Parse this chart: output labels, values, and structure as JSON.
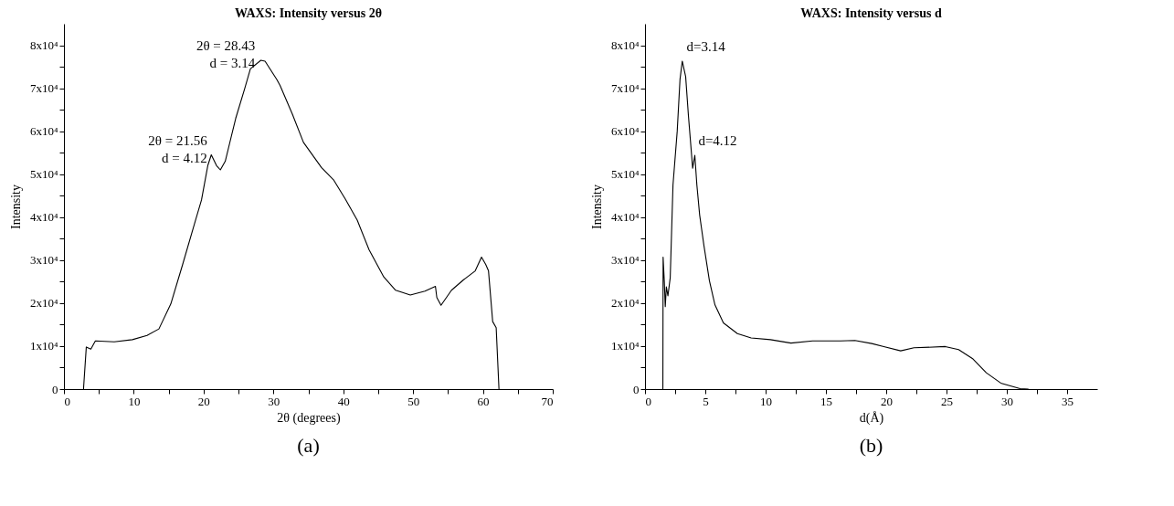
{
  "chart_data": [
    {
      "type": "line",
      "title": "WAXS: Intensity versus 2θ",
      "xlabel": "2θ (degrees)",
      "ylabel": "Intensity",
      "x": [
        2.8,
        3.2,
        3.85,
        4.5,
        7.2,
        9.8,
        11.9,
        13.6,
        15.3,
        17.0,
        18.7,
        19.7,
        20.6,
        21.1,
        21.85,
        22.4,
        23.1,
        24.6,
        25.9,
        26.7,
        28.2,
        28.8,
        30.5,
        30.96,
        32.7,
        34.3,
        36.9,
        38.6,
        40.3,
        42.0,
        43.7,
        45.8,
        47.5,
        49.6,
        51.7,
        53.2,
        53.4,
        54.0,
        55.5,
        57.2,
        58.9,
        59.8,
        60.4,
        60.8,
        61.4,
        61.9,
        62.3
      ],
      "series": [
        {
          "color": "#000000",
          "values": [
            0,
            9800,
            9300,
            11200,
            11000,
            11500,
            12500,
            14000,
            19800,
            29000,
            38500,
            44000,
            52000,
            54500,
            52000,
            51000,
            53000,
            63000,
            70000,
            74500,
            76500,
            76300,
            72000,
            70600,
            64000,
            57400,
            51500,
            48700,
            44200,
            39300,
            32400,
            26100,
            23000,
            21900,
            22800,
            23900,
            21300,
            19500,
            23000,
            25400,
            27500,
            30700,
            29000,
            27500,
            15700,
            14300,
            0
          ]
        }
      ],
      "xlim": [
        0,
        70
      ],
      "xticks": [
        0,
        {
          "value": 5,
          "label": null
        },
        10,
        {
          "value": 15,
          "label": null
        },
        20,
        {
          "value": 25,
          "label": null
        },
        30,
        {
          "value": 35,
          "label": null
        },
        40,
        {
          "value": 45,
          "label": null
        },
        50,
        {
          "value": 55,
          "label": null
        },
        60,
        {
          "value": 65,
          "label": null
        },
        70
      ],
      "ylim": [
        0,
        85000
      ],
      "yticks": [
        0,
        {
          "value": 5000,
          "label": null
        },
        {
          "value": 10000,
          "label": "1x10⁴"
        },
        {
          "value": 15000,
          "label": null
        },
        {
          "value": 20000,
          "label": "2x10⁴"
        },
        {
          "value": 25000,
          "label": null
        },
        {
          "value": 30000,
          "label": "3x10⁴"
        },
        {
          "value": 35000,
          "label": null
        },
        {
          "value": 40000,
          "label": "4x10⁴"
        },
        {
          "value": 45000,
          "label": null
        },
        {
          "value": 50000,
          "label": "5x10⁴"
        },
        {
          "value": 55000,
          "label": null
        },
        {
          "value": 60000,
          "label": "6x10⁴"
        },
        {
          "value": 65000,
          "label": null
        },
        {
          "value": 70000,
          "label": "7x10⁴"
        },
        {
          "value": 75000,
          "label": null
        },
        {
          "value": 80000,
          "label": "8x10⁴"
        }
      ],
      "annotations": [
        {
          "text": "2θ = 21.56\nd = 4.12",
          "x": 21.56,
          "y": 54500
        },
        {
          "text": "2θ = 28.43\nd = 3.14",
          "x": 28.43,
          "y": 76500
        },
        "(a)"
      ]
    },
    {
      "type": "line",
      "title": "WAXS: Intensity versus d",
      "xlabel": "d(Å)",
      "ylabel": "Intensity",
      "x": [
        1.48,
        1.5,
        1.6,
        1.68,
        1.77,
        1.9,
        2.09,
        2.32,
        2.67,
        2.9,
        3.09,
        3.37,
        3.6,
        3.95,
        4.13,
        4.3,
        4.53,
        4.88,
        5.34,
        5.8,
        6.5,
        7.66,
        8.8,
        10.4,
        12.1,
        13.9,
        16.2,
        17.4,
        18.8,
        19.8,
        21.2,
        22.3,
        24.9,
        26.0,
        27.2,
        28.3,
        29.5,
        31.1,
        31.8
      ],
      "series": [
        {
          "color": "#000000",
          "values": [
            0,
            30700,
            25000,
            19200,
            23800,
            21700,
            25900,
            47500,
            60000,
            72000,
            76300,
            72700,
            63600,
            51400,
            54400,
            47500,
            40500,
            33500,
            25200,
            19600,
            15400,
            12900,
            11900,
            11500,
            10700,
            11200,
            11200,
            11300,
            10600,
            9900,
            8900,
            9600,
            9900,
            9200,
            7000,
            3800,
            1400,
            100,
            0
          ]
        }
      ],
      "xlim": [
        0,
        37.5
      ],
      "xticks": [
        0,
        {
          "value": 2.5,
          "label": null
        },
        5,
        {
          "value": 7.5,
          "label": null
        },
        10,
        {
          "value": 12.5,
          "label": null
        },
        15,
        {
          "value": 17.5,
          "label": null
        },
        20,
        {
          "value": 22.5,
          "label": null
        },
        25,
        {
          "value": 27.5,
          "label": null
        },
        30,
        {
          "value": 32.5,
          "label": null
        },
        35
      ],
      "ylim": [
        0,
        85000
      ],
      "yticks": [
        0,
        {
          "value": 5000,
          "label": null
        },
        {
          "value": 10000,
          "label": "1x10⁴"
        },
        {
          "value": 15000,
          "label": null
        },
        {
          "value": 20000,
          "label": "2x10⁴"
        },
        {
          "value": 25000,
          "label": null
        },
        {
          "value": 30000,
          "label": "3x10⁴"
        },
        {
          "value": 35000,
          "label": null
        },
        {
          "value": 40000,
          "label": "4x10⁴"
        },
        {
          "value": 45000,
          "label": null
        },
        {
          "value": 50000,
          "label": "5x10⁴"
        },
        {
          "value": 55000,
          "label": null
        },
        {
          "value": 60000,
          "label": "6x10⁴"
        },
        {
          "value": 65000,
          "label": null
        },
        {
          "value": 70000,
          "label": "7x10⁴"
        },
        {
          "value": 75000,
          "label": null
        },
        {
          "value": 80000,
          "label": "8x10⁴"
        }
      ],
      "annotations": [
        {
          "text": "d=3.14",
          "x": 3.14,
          "y": 76300
        },
        {
          "text": "d=4.12",
          "x": 4.12,
          "y": 54400
        },
        "(b)"
      ]
    }
  ]
}
